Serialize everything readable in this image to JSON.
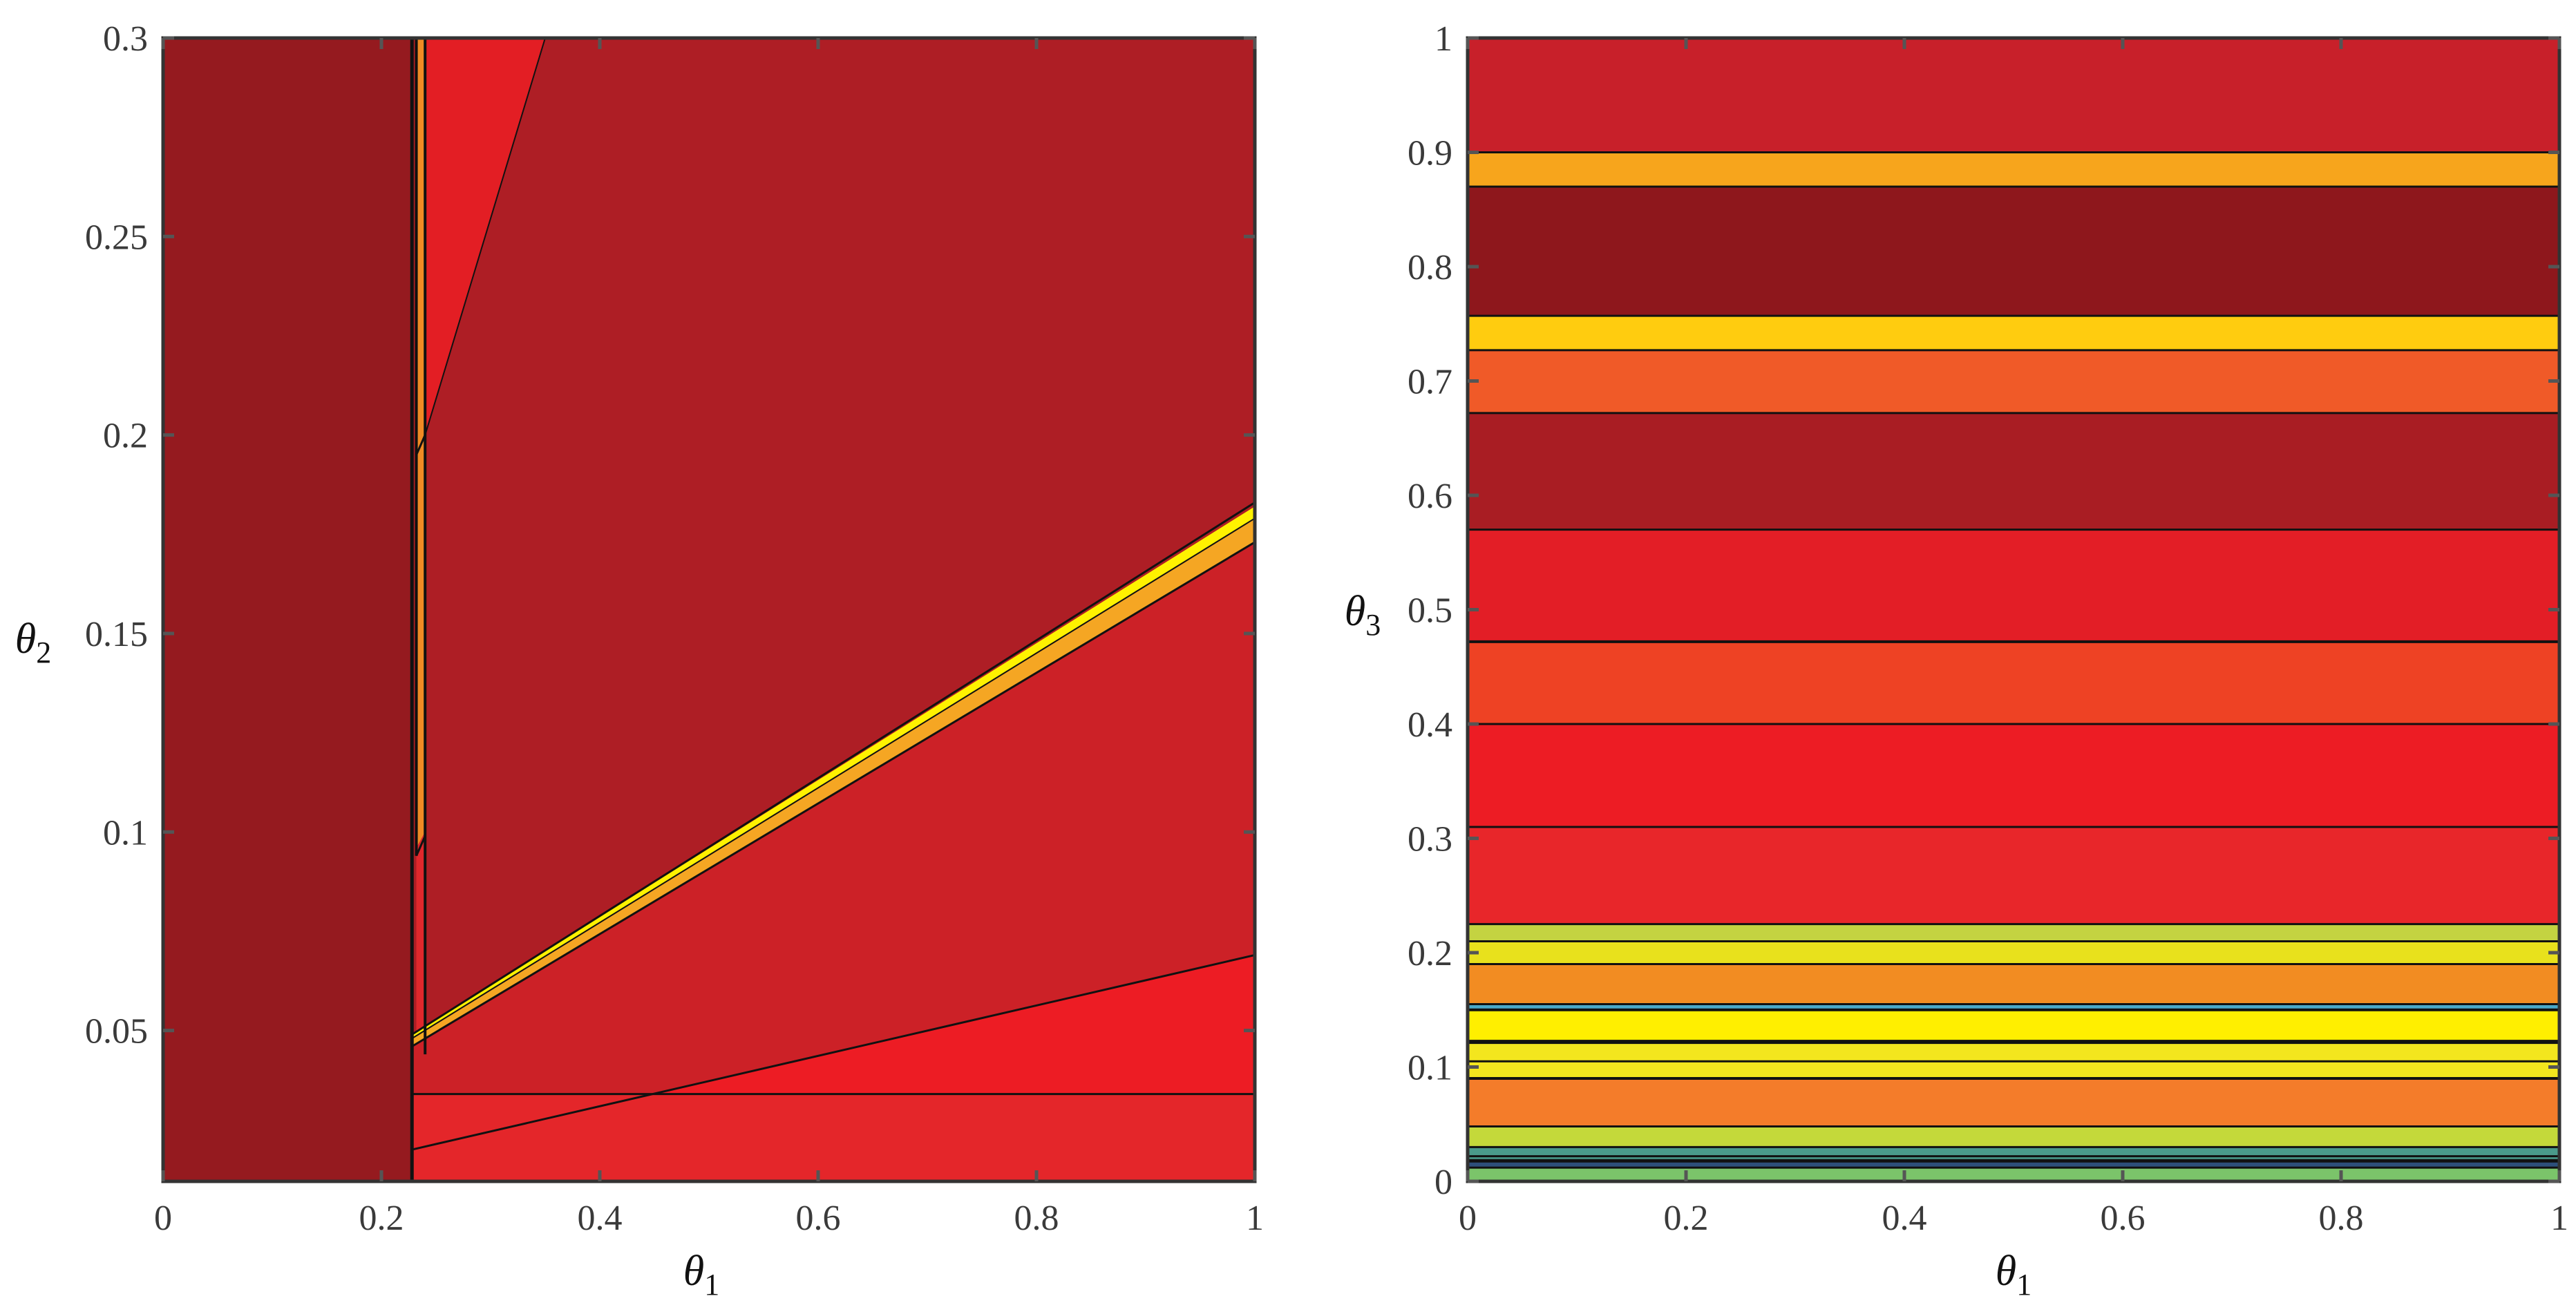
{
  "chart_data": [
    {
      "type": "area",
      "xlabel": "θ",
      "xlabel_sub": "1",
      "ylabel": "θ",
      "ylabel_sub": "2",
      "xlim": [
        0,
        1
      ],
      "ylim": [
        0.012,
        0.3
      ],
      "xticks": [
        {
          "value": 0,
          "label": "0"
        },
        {
          "value": 0.2,
          "label": "0.2"
        },
        {
          "value": 0.4,
          "label": "0.4"
        },
        {
          "value": 0.6,
          "label": "0.6"
        },
        {
          "value": 0.8,
          "label": "0.8"
        },
        {
          "value": 1,
          "label": "1"
        }
      ],
      "yticks": [
        {
          "value": 0.05,
          "label": "0.05"
        },
        {
          "value": 0.1,
          "label": "0.1"
        },
        {
          "value": 0.15,
          "label": "0.15"
        },
        {
          "value": 0.2,
          "label": "0.2"
        },
        {
          "value": 0.25,
          "label": "0.25"
        },
        {
          "value": 0.3,
          "label": "0.3"
        }
      ],
      "regions": [
        {
          "color": "#ae1e25",
          "points": [
            [
              0.228,
              0.012
            ],
            [
              1,
              0.012
            ],
            [
              1,
              0.3
            ],
            [
              0.228,
              0.3
            ]
          ]
        },
        {
          "color": "#951a1f",
          "points": [
            [
              0,
              0.012
            ],
            [
              0.228,
              0.012
            ],
            [
              0.228,
              0.3
            ],
            [
              0,
              0.3
            ]
          ]
        },
        {
          "color": "#e31e24",
          "points": [
            [
              0.24,
              0.2
            ],
            [
              0.24,
              0.3
            ],
            [
              0.35,
              0.3
            ]
          ]
        },
        {
          "color": "#f08a24",
          "points": [
            [
              0.232,
              0.096
            ],
            [
              0.24,
              0.1
            ],
            [
              0.24,
              0.3
            ],
            [
              0.232,
              0.3
            ]
          ]
        },
        {
          "color": "#e0282c",
          "points": [
            [
              0.24,
              0.044
            ],
            [
              0.24,
              0.1
            ],
            [
              0.232,
              0.096
            ],
            [
              0.232,
              0.044
            ]
          ]
        },
        {
          "color": "#cc2127",
          "points": [
            [
              0.228,
              0.046
            ],
            [
              1,
              0.173
            ],
            [
              1,
              0.069
            ],
            [
              0.228,
              0.02
            ]
          ]
        },
        {
          "color": "#f5a623",
          "points": [
            [
              0.228,
              0.046
            ],
            [
              1,
              0.173
            ],
            [
              1,
              0.179
            ],
            [
              0.228,
              0.048
            ]
          ]
        },
        {
          "color": "#fff200",
          "points": [
            [
              0.228,
              0.048
            ],
            [
              1,
              0.179
            ],
            [
              1,
              0.182
            ],
            [
              0.228,
              0.049
            ]
          ]
        },
        {
          "color": "#ed1c24",
          "points": [
            [
              0.228,
              0.02
            ],
            [
              1,
              0.069
            ],
            [
              1,
              0.012
            ],
            [
              0.228,
              0.012
            ]
          ]
        },
        {
          "color": "#ef4c24",
          "points": [
            [
              0.228,
              0.02
            ],
            [
              0.43,
              0.034
            ],
            [
              0.228,
              0.034
            ]
          ]
        },
        {
          "color": "#e4262a",
          "points": [
            [
              0.228,
              0.012
            ],
            [
              1,
              0.012
            ],
            [
              1,
              0.034
            ],
            [
              0.228,
              0.034
            ]
          ]
        }
      ],
      "boundaries": [
        {
          "points": [
            [
              0.228,
              0.012
            ],
            [
              0.228,
              0.3
            ]
          ],
          "width": 5
        },
        {
          "points": [
            [
              0.232,
              0.094
            ],
            [
              0.232,
              0.3
            ]
          ],
          "width": 4
        },
        {
          "points": [
            [
              0.24,
              0.044
            ],
            [
              0.24,
              0.3
            ]
          ],
          "width": 4
        },
        {
          "points": [
            [
              0.232,
              0.195
            ],
            [
              0.24,
              0.2
            ]
          ],
          "width": 3
        },
        {
          "points": [
            [
              0.24,
              0.2
            ],
            [
              0.35,
              0.3
            ]
          ],
          "width": 2
        },
        {
          "points": [
            [
              0.232,
              0.094
            ],
            [
              0.24,
              0.099
            ]
          ],
          "width": 3
        },
        {
          "points": [
            [
              0.228,
              0.046
            ],
            [
              1,
              0.173
            ]
          ],
          "width": 3
        },
        {
          "points": [
            [
              0.228,
              0.048
            ],
            [
              1,
              0.179
            ]
          ],
          "width": 2
        },
        {
          "points": [
            [
              0.228,
              0.049
            ],
            [
              1,
              0.183
            ]
          ],
          "width": 3
        },
        {
          "points": [
            [
              0.228,
              0.02
            ],
            [
              1,
              0.069
            ]
          ],
          "width": 3
        },
        {
          "points": [
            [
              0.228,
              0.034
            ],
            [
              1,
              0.034
            ]
          ],
          "width": 3
        }
      ]
    },
    {
      "type": "area",
      "xlabel": "θ",
      "xlabel_sub": "1",
      "ylabel": "θ",
      "ylabel_sub": "3",
      "xlim": [
        0,
        1
      ],
      "ylim": [
        0,
        1
      ],
      "xticks": [
        {
          "value": 0,
          "label": "0"
        },
        {
          "value": 0.2,
          "label": "0.2"
        },
        {
          "value": 0.4,
          "label": "0.4"
        },
        {
          "value": 0.6,
          "label": "0.6"
        },
        {
          "value": 0.8,
          "label": "0.8"
        },
        {
          "value": 1,
          "label": "1"
        }
      ],
      "yticks": [
        {
          "value": 0,
          "label": "0"
        },
        {
          "value": 0.1,
          "label": "0.1"
        },
        {
          "value": 0.2,
          "label": "0.2"
        },
        {
          "value": 0.3,
          "label": "0.3"
        },
        {
          "value": 0.4,
          "label": "0.4"
        },
        {
          "value": 0.5,
          "label": "0.5"
        },
        {
          "value": 0.6,
          "label": "0.6"
        },
        {
          "value": 0.7,
          "label": "0.7"
        },
        {
          "value": 0.8,
          "label": "0.8"
        },
        {
          "value": 0.9,
          "label": "0.9"
        },
        {
          "value": 1,
          "label": "1"
        }
      ],
      "bands": [
        {
          "from": 0.0,
          "to": 0.012,
          "color": "#7bc46a"
        },
        {
          "from": 0.012,
          "to": 0.018,
          "color": "#2d4f7a"
        },
        {
          "from": 0.018,
          "to": 0.03,
          "color": "#4a9a8a"
        },
        {
          "from": 0.03,
          "to": 0.048,
          "color": "#c4d93a"
        },
        {
          "from": 0.048,
          "to": 0.09,
          "color": "#f47c2a"
        },
        {
          "from": 0.09,
          "to": 0.12,
          "color": "#f3e61e"
        },
        {
          "from": 0.12,
          "to": 0.15,
          "color": "#ffef00"
        },
        {
          "from": 0.15,
          "to": 0.155,
          "color": "#4aa8c8"
        },
        {
          "from": 0.155,
          "to": 0.19,
          "color": "#f28c22"
        },
        {
          "from": 0.19,
          "to": 0.21,
          "color": "#e8e11c"
        },
        {
          "from": 0.21,
          "to": 0.225,
          "color": "#c4d341"
        },
        {
          "from": 0.225,
          "to": 0.31,
          "color": "#e8262a"
        },
        {
          "from": 0.31,
          "to": 0.4,
          "color": "#ed1c24"
        },
        {
          "from": 0.4,
          "to": 0.472,
          "color": "#ee4224"
        },
        {
          "from": 0.472,
          "to": 0.57,
          "color": "#e31e26"
        },
        {
          "from": 0.57,
          "to": 0.672,
          "color": "#a91d23"
        },
        {
          "from": 0.672,
          "to": 0.727,
          "color": "#f05a28"
        },
        {
          "from": 0.727,
          "to": 0.757,
          "color": "#ffcc0f"
        },
        {
          "from": 0.757,
          "to": 0.87,
          "color": "#8e171c"
        },
        {
          "from": 0.87,
          "to": 0.9,
          "color": "#f7a51c"
        },
        {
          "from": 0.9,
          "to": 1.0,
          "color": "#c8202a"
        }
      ],
      "lines": [
        {
          "y": 0.012,
          "width": 3
        },
        {
          "y": 0.018,
          "width": 5
        },
        {
          "y": 0.022,
          "width": 3
        },
        {
          "y": 0.03,
          "width": 3
        },
        {
          "y": 0.048,
          "width": 3
        },
        {
          "y": 0.09,
          "width": 4
        },
        {
          "y": 0.105,
          "width": 3
        },
        {
          "y": 0.122,
          "width": 6
        },
        {
          "y": 0.15,
          "width": 4
        },
        {
          "y": 0.155,
          "width": 3
        },
        {
          "y": 0.19,
          "width": 3
        },
        {
          "y": 0.21,
          "width": 3
        },
        {
          "y": 0.225,
          "width": 3
        },
        {
          "y": 0.31,
          "width": 3
        },
        {
          "y": 0.4,
          "width": 3
        },
        {
          "y": 0.472,
          "width": 4
        },
        {
          "y": 0.57,
          "width": 3
        },
        {
          "y": 0.672,
          "width": 3
        },
        {
          "y": 0.727,
          "width": 3
        },
        {
          "y": 0.757,
          "width": 3
        },
        {
          "y": 0.87,
          "width": 3
        },
        {
          "y": 0.9,
          "width": 3
        }
      ]
    }
  ]
}
